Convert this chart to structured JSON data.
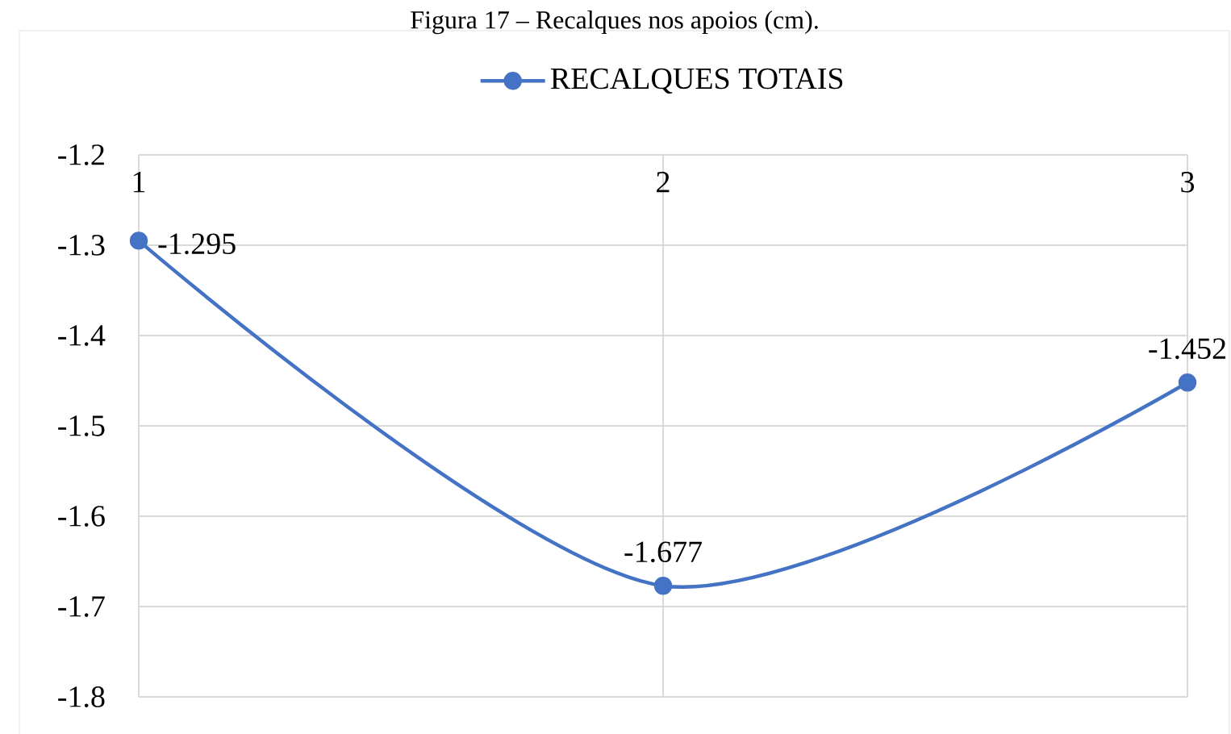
{
  "chart_data": {
    "type": "line",
    "title": "Figura 17 – Recalques nos apoios (cm).",
    "categories": [
      "1",
      "2",
      "3"
    ],
    "series": [
      {
        "name": "RECALQUES TOTAIS",
        "color": "#4472c4",
        "values": [
          -1.295,
          -1.677,
          -1.452
        ]
      }
    ],
    "ylim": [
      -1.8,
      -1.2
    ],
    "yticks": [
      -1.8,
      -1.7,
      -1.6,
      -1.5,
      -1.4,
      -1.3,
      -1.2
    ],
    "grid": true,
    "legend": "top",
    "marker": "circle",
    "line_style": "solid",
    "data_labels": true
  }
}
